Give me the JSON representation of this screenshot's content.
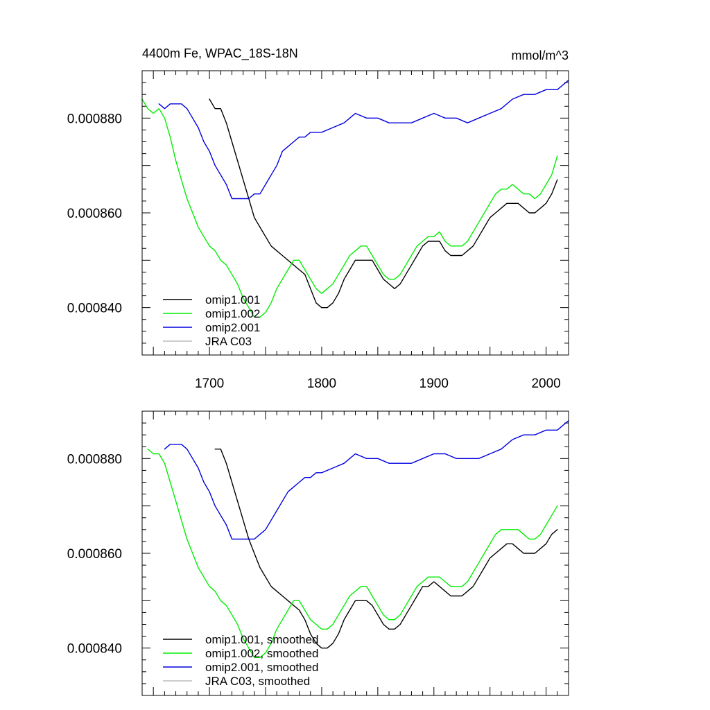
{
  "chart_data": [
    {
      "type": "line",
      "title": "4400m Fe, WPAC_18S-18N",
      "units": "mmol/m^3",
      "xlim": [
        1640,
        2020
      ],
      "ylim": [
        0.00083,
        0.00089
      ],
      "xticks": [
        1700,
        1800,
        1900,
        2000
      ],
      "x_tick_labels": [
        "1700",
        "1800",
        "1900",
        "2000"
      ],
      "yticks": [
        0.00084,
        0.00086,
        0.00088
      ],
      "y_tick_labels": [
        "0.000840",
        "0.000860",
        "0.000880"
      ],
      "grid": false,
      "legend_position": "bottom-left",
      "colors": {
        "omip1.001": "#000000",
        "omip1.002": "#00ee00",
        "omip2.001": "#0000dd",
        "JRA C03": "#bbbbbb"
      },
      "legend": [
        "omip1.001",
        "omip1.002",
        "omip2.001",
        "JRA C03"
      ],
      "series": [
        {
          "name": "omip1.001",
          "x": [
            1700,
            1705,
            1710,
            1715,
            1720,
            1725,
            1730,
            1735,
            1740,
            1745,
            1750,
            1755,
            1760,
            1765,
            1770,
            1775,
            1780,
            1785,
            1790,
            1795,
            1800,
            1805,
            1810,
            1815,
            1820,
            1825,
            1830,
            1835,
            1840,
            1845,
            1850,
            1855,
            1860,
            1865,
            1870,
            1875,
            1880,
            1885,
            1890,
            1895,
            1900,
            1905,
            1910,
            1915,
            1920,
            1925,
            1930,
            1935,
            1940,
            1945,
            1950,
            1955,
            1960,
            1965,
            1970,
            1975,
            1980,
            1985,
            1990,
            1995,
            2000,
            2005,
            2010
          ],
          "y": [
            0.000884,
            0.000882,
            0.000882,
            0.000879,
            0.000875,
            0.000871,
            0.000867,
            0.000863,
            0.000859,
            0.000857,
            0.000855,
            0.000853,
            0.000852,
            0.000851,
            0.00085,
            0.000849,
            0.000848,
            0.000847,
            0.000844,
            0.000841,
            0.00084,
            0.00084,
            0.000841,
            0.000843,
            0.000846,
            0.000848,
            0.00085,
            0.00085,
            0.00085,
            0.00085,
            0.000848,
            0.000846,
            0.000845,
            0.000844,
            0.000845,
            0.000847,
            0.000849,
            0.000851,
            0.000853,
            0.000854,
            0.000854,
            0.000854,
            0.000852,
            0.000851,
            0.000851,
            0.000851,
            0.000852,
            0.000853,
            0.000855,
            0.000857,
            0.000859,
            0.00086,
            0.000861,
            0.000862,
            0.000862,
            0.000862,
            0.000861,
            0.00086,
            0.00086,
            0.000861,
            0.000862,
            0.000864,
            0.000867
          ]
        },
        {
          "name": "omip1.002",
          "x": [
            1640,
            1645,
            1650,
            1655,
            1660,
            1665,
            1670,
            1675,
            1680,
            1685,
            1690,
            1695,
            1700,
            1705,
            1710,
            1715,
            1720,
            1725,
            1730,
            1735,
            1740,
            1745,
            1750,
            1755,
            1760,
            1765,
            1770,
            1775,
            1780,
            1785,
            1790,
            1795,
            1800,
            1805,
            1810,
            1815,
            1820,
            1825,
            1830,
            1835,
            1840,
            1845,
            1850,
            1855,
            1860,
            1865,
            1870,
            1875,
            1880,
            1885,
            1890,
            1895,
            1900,
            1905,
            1910,
            1915,
            1920,
            1925,
            1930,
            1935,
            1940,
            1945,
            1950,
            1955,
            1960,
            1965,
            1970,
            1975,
            1980,
            1985,
            1990,
            1995,
            2000,
            2005,
            2010
          ],
          "y": [
            0.000884,
            0.000882,
            0.000881,
            0.000882,
            0.00088,
            0.000876,
            0.000871,
            0.000867,
            0.000863,
            0.00086,
            0.000857,
            0.000855,
            0.000853,
            0.000852,
            0.00085,
            0.000849,
            0.000847,
            0.000845,
            0.000842,
            0.00084,
            0.000838,
            0.000838,
            0.000839,
            0.000841,
            0.000844,
            0.000846,
            0.000848,
            0.00085,
            0.00085,
            0.000848,
            0.000846,
            0.000844,
            0.000843,
            0.000844,
            0.000845,
            0.000847,
            0.000849,
            0.000851,
            0.000852,
            0.000853,
            0.000853,
            0.000851,
            0.000849,
            0.000847,
            0.000846,
            0.000846,
            0.000847,
            0.000849,
            0.000851,
            0.000853,
            0.000854,
            0.000855,
            0.000855,
            0.000856,
            0.000854,
            0.000853,
            0.000853,
            0.000853,
            0.000854,
            0.000856,
            0.000858,
            0.00086,
            0.000862,
            0.000864,
            0.000865,
            0.000865,
            0.000866,
            0.000865,
            0.000864,
            0.000864,
            0.000863,
            0.000864,
            0.000866,
            0.000868,
            0.000872
          ]
        },
        {
          "name": "omip2.001",
          "x": [
            1655,
            1660,
            1665,
            1670,
            1675,
            1680,
            1685,
            1690,
            1695,
            1700,
            1705,
            1710,
            1715,
            1720,
            1725,
            1730,
            1735,
            1740,
            1745,
            1750,
            1755,
            1760,
            1765,
            1770,
            1775,
            1780,
            1785,
            1790,
            1795,
            1800,
            1810,
            1820,
            1830,
            1840,
            1850,
            1860,
            1870,
            1880,
            1890,
            1900,
            1910,
            1920,
            1930,
            1940,
            1950,
            1960,
            1970,
            1980,
            1990,
            2000,
            2010,
            2020
          ],
          "y": [
            0.000883,
            0.000882,
            0.000883,
            0.000883,
            0.000883,
            0.000882,
            0.00088,
            0.000878,
            0.000875,
            0.000873,
            0.00087,
            0.000868,
            0.000866,
            0.000863,
            0.000863,
            0.000863,
            0.000863,
            0.000864,
            0.000864,
            0.000866,
            0.000868,
            0.00087,
            0.000873,
            0.000874,
            0.000875,
            0.000876,
            0.000876,
            0.000877,
            0.000877,
            0.000877,
            0.000878,
            0.000879,
            0.000881,
            0.00088,
            0.00088,
            0.000879,
            0.000879,
            0.000879,
            0.00088,
            0.000881,
            0.00088,
            0.00088,
            0.000879,
            0.00088,
            0.000881,
            0.000882,
            0.000884,
            0.000885,
            0.000885,
            0.000886,
            0.000886,
            0.000888
          ]
        }
      ]
    },
    {
      "type": "line",
      "xlim": [
        1640,
        2020
      ],
      "ylim": [
        0.00083,
        0.00089
      ],
      "xticks": [
        1700,
        1800,
        1900,
        2000
      ],
      "yticks": [
        0.00084,
        0.00086,
        0.00088
      ],
      "y_tick_labels": [
        "0.000840",
        "0.000860",
        "0.000880"
      ],
      "grid": false,
      "legend_position": "bottom-left",
      "colors": {
        "omip1.001, smoothed": "#000000",
        "omip1.002, smoothed": "#00ee00",
        "omip2.001, smoothed": "#0000dd",
        "JRA C03, smoothed": "#bbbbbb"
      },
      "legend": [
        "omip1.001, smoothed",
        "omip1.002, smoothed",
        "omip2.001, smoothed",
        "JRA C03, smoothed"
      ],
      "series": [
        {
          "name": "omip1.001, smoothed",
          "x": [
            1705,
            1710,
            1715,
            1720,
            1725,
            1730,
            1735,
            1740,
            1745,
            1750,
            1755,
            1760,
            1765,
            1770,
            1775,
            1780,
            1785,
            1790,
            1795,
            1800,
            1805,
            1810,
            1815,
            1820,
            1825,
            1830,
            1835,
            1840,
            1845,
            1850,
            1855,
            1860,
            1865,
            1870,
            1875,
            1880,
            1885,
            1890,
            1895,
            1900,
            1905,
            1910,
            1915,
            1920,
            1925,
            1930,
            1935,
            1940,
            1945,
            1950,
            1955,
            1960,
            1965,
            1970,
            1975,
            1980,
            1985,
            1990,
            1995,
            2000,
            2005,
            2010
          ],
          "y": [
            0.000882,
            0.000882,
            0.000879,
            0.000875,
            0.000871,
            0.000867,
            0.000863,
            0.00086,
            0.000857,
            0.000855,
            0.000853,
            0.000852,
            0.000851,
            0.00085,
            0.000849,
            0.000848,
            0.000846,
            0.000843,
            0.000841,
            0.00084,
            0.00084,
            0.000841,
            0.000843,
            0.000846,
            0.000848,
            0.00085,
            0.00085,
            0.00085,
            0.000849,
            0.000847,
            0.000845,
            0.000844,
            0.000844,
            0.000845,
            0.000847,
            0.000849,
            0.000851,
            0.000853,
            0.000853,
            0.000854,
            0.000853,
            0.000852,
            0.000851,
            0.000851,
            0.000851,
            0.000852,
            0.000853,
            0.000855,
            0.000857,
            0.000859,
            0.00086,
            0.000861,
            0.000862,
            0.000862,
            0.000861,
            0.00086,
            0.00086,
            0.00086,
            0.000861,
            0.000862,
            0.000864,
            0.000865
          ]
        },
        {
          "name": "omip1.002, smoothed",
          "x": [
            1645,
            1650,
            1655,
            1660,
            1665,
            1670,
            1675,
            1680,
            1685,
            1690,
            1695,
            1700,
            1705,
            1710,
            1715,
            1720,
            1725,
            1730,
            1735,
            1740,
            1745,
            1750,
            1755,
            1760,
            1765,
            1770,
            1775,
            1780,
            1785,
            1790,
            1795,
            1800,
            1805,
            1810,
            1815,
            1820,
            1825,
            1830,
            1835,
            1840,
            1845,
            1850,
            1855,
            1860,
            1865,
            1870,
            1875,
            1880,
            1885,
            1890,
            1895,
            1900,
            1905,
            1910,
            1915,
            1920,
            1925,
            1930,
            1935,
            1940,
            1945,
            1950,
            1955,
            1960,
            1965,
            1970,
            1975,
            1980,
            1985,
            1990,
            1995,
            2000,
            2005,
            2010
          ],
          "y": [
            0.000882,
            0.000881,
            0.000881,
            0.000879,
            0.000875,
            0.000871,
            0.000867,
            0.000863,
            0.00086,
            0.000857,
            0.000855,
            0.000853,
            0.000852,
            0.00085,
            0.000849,
            0.000847,
            0.000845,
            0.000842,
            0.00084,
            0.000838,
            0.000838,
            0.000839,
            0.000841,
            0.000844,
            0.000846,
            0.000848,
            0.00085,
            0.00085,
            0.000848,
            0.000846,
            0.000845,
            0.000844,
            0.000844,
            0.000845,
            0.000847,
            0.000849,
            0.000851,
            0.000852,
            0.000853,
            0.000853,
            0.000851,
            0.000849,
            0.000847,
            0.000846,
            0.000846,
            0.000847,
            0.000849,
            0.000851,
            0.000853,
            0.000854,
            0.000855,
            0.000855,
            0.000855,
            0.000854,
            0.000853,
            0.000853,
            0.000853,
            0.000854,
            0.000856,
            0.000858,
            0.00086,
            0.000862,
            0.000864,
            0.000865,
            0.000865,
            0.000865,
            0.000865,
            0.000864,
            0.000863,
            0.000863,
            0.000864,
            0.000866,
            0.000868,
            0.00087
          ]
        },
        {
          "name": "omip2.001, smoothed",
          "x": [
            1660,
            1665,
            1670,
            1675,
            1680,
            1685,
            1690,
            1695,
            1700,
            1705,
            1710,
            1715,
            1720,
            1725,
            1730,
            1735,
            1740,
            1745,
            1750,
            1755,
            1760,
            1765,
            1770,
            1775,
            1780,
            1785,
            1790,
            1795,
            1800,
            1810,
            1820,
            1830,
            1840,
            1850,
            1860,
            1870,
            1880,
            1890,
            1900,
            1910,
            1920,
            1930,
            1940,
            1950,
            1960,
            1970,
            1980,
            1990,
            2000,
            2010,
            2020
          ],
          "y": [
            0.000882,
            0.000883,
            0.000883,
            0.000883,
            0.000882,
            0.00088,
            0.000878,
            0.000875,
            0.000873,
            0.00087,
            0.000868,
            0.000866,
            0.000863,
            0.000863,
            0.000863,
            0.000863,
            0.000863,
            0.000864,
            0.000865,
            0.000867,
            0.000869,
            0.000871,
            0.000873,
            0.000874,
            0.000875,
            0.000876,
            0.000876,
            0.000877,
            0.000877,
            0.000878,
            0.000879,
            0.000881,
            0.00088,
            0.00088,
            0.000879,
            0.000879,
            0.000879,
            0.00088,
            0.000881,
            0.000881,
            0.00088,
            0.00088,
            0.00088,
            0.000881,
            0.000882,
            0.000884,
            0.000885,
            0.000885,
            0.000886,
            0.000886,
            0.000888
          ]
        }
      ]
    }
  ]
}
